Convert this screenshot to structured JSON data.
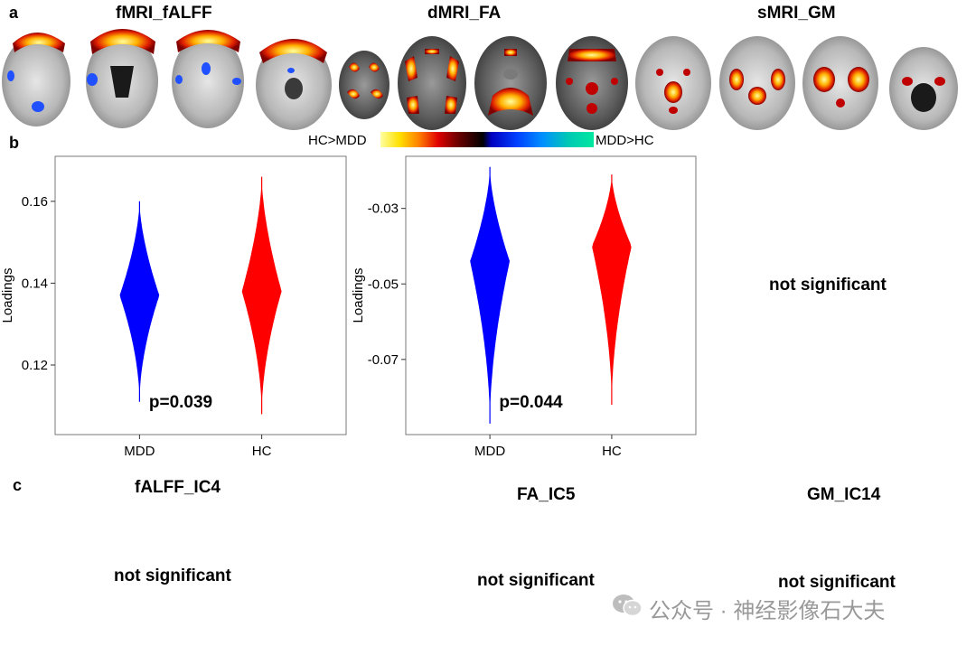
{
  "panels": {
    "a": "a",
    "b": "b",
    "c": "c"
  },
  "panel_a": {
    "modalities": [
      {
        "title": "fMRI_fALFF"
      },
      {
        "title": "dMRI_FA"
      },
      {
        "title": "sMRI_GM"
      }
    ],
    "colorbar": {
      "left_label": "HC>MDD",
      "right_label": "MDD>HC",
      "colors": [
        "#ffffa0",
        "#ffe000",
        "#ff8000",
        "#e00000",
        "#700000",
        "#000000",
        "#0000c0",
        "#0040ff",
        "#0090ff",
        "#00c8b4",
        "#00e8a0"
      ]
    }
  },
  "panel_b": {
    "not_significant": "not significant"
  },
  "panel_c": {
    "components": [
      {
        "title": "fALFF_IC4",
        "result": "not significant"
      },
      {
        "title": "FA_IC5",
        "result": "not significant"
      },
      {
        "title": "GM_IC14",
        "result": "not significant"
      }
    ]
  },
  "watermark": {
    "text": "公众号 · 神经影像石大夫"
  },
  "chart_data": [
    {
      "type": "violin",
      "ylabel": "Loadings",
      "categories": [
        "MDD",
        "HC"
      ],
      "yticks": [
        0.12,
        0.14,
        0.16
      ],
      "ylim": [
        0.103,
        0.171
      ],
      "annotation": "p=0.039",
      "series": [
        {
          "name": "MDD",
          "color": "#0000ff",
          "min": 0.111,
          "max": 0.16,
          "mode": 0.137
        },
        {
          "name": "HC",
          "color": "#ff0000",
          "min": 0.108,
          "max": 0.166,
          "mode": 0.138
        }
      ]
    },
    {
      "type": "violin",
      "ylabel": "Loadings",
      "categories": [
        "MDD",
        "HC"
      ],
      "yticks": [
        -0.07,
        -0.05,
        -0.03
      ],
      "ylim": [
        -0.0899,
        -0.0162
      ],
      "annotation": "p=0.044",
      "series": [
        {
          "name": "MDD",
          "color": "#0000ff",
          "min": -0.087,
          "max": -0.019,
          "mode": -0.044
        },
        {
          "name": "HC",
          "color": "#ff0000",
          "min": -0.082,
          "max": -0.021,
          "mode": -0.04
        }
      ]
    }
  ]
}
